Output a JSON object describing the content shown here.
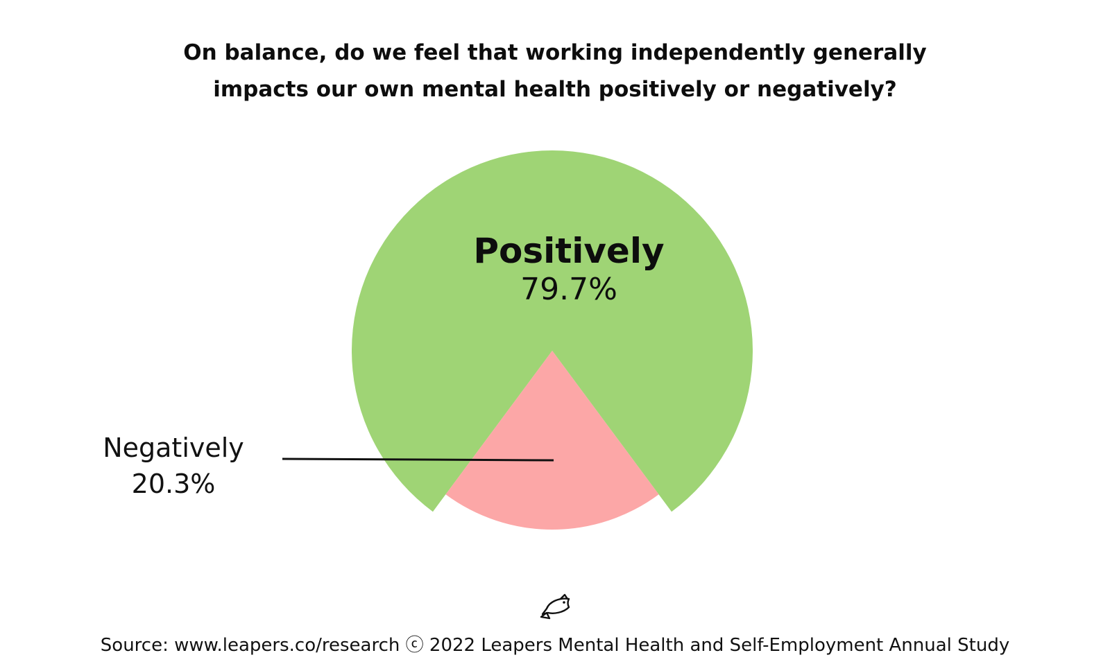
{
  "title_lines": [
    "On balance, do we feel that working independently generally",
    "impacts our own mental health positively or negatively?"
  ],
  "chart_data": {
    "type": "pie",
    "title": "On balance, do we feel that working independently generally impacts our own mental health positively or negatively?",
    "slices": [
      {
        "label": "Positively",
        "value": 79.7,
        "display": "79.7%",
        "color": "#9fd475"
      },
      {
        "label": "Negatively",
        "value": 20.3,
        "display": "20.3%",
        "color": "#fca7a7"
      }
    ],
    "legend": "none",
    "slice_offset": "exploded"
  },
  "labels": {
    "positive_name": "Positively",
    "positive_value": "79.7%",
    "negative_name": "Negatively",
    "negative_value": "20.3%"
  },
  "logo_icon": "fish-logo-icon",
  "source": "Source: www.leapers.co/research ⓒ 2022 Leapers Mental Health and Self-Employment Annual Study"
}
